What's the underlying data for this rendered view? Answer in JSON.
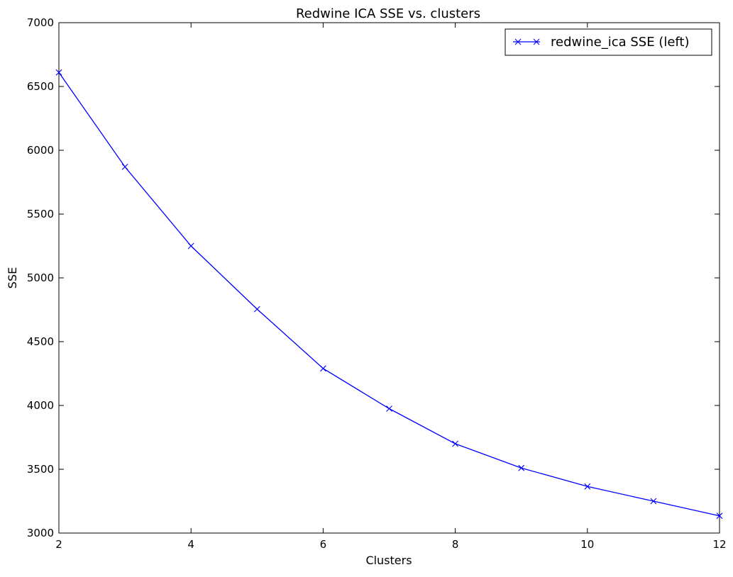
{
  "chart_data": {
    "type": "line",
    "title": "Redwine ICA SSE vs. clusters",
    "xlabel": "Clusters",
    "ylabel": "SSE",
    "xlim": [
      2,
      12
    ],
    "ylim": [
      3000,
      7000
    ],
    "xticks": [
      "2",
      "4",
      "6",
      "8",
      "10",
      "12"
    ],
    "yticks": [
      "3000",
      "3500",
      "4000",
      "4500",
      "5000",
      "5500",
      "6000",
      "6500",
      "7000"
    ],
    "grid": false,
    "legend_position": "top-right",
    "series": [
      {
        "name": "redwine_ica SSE (left)",
        "color": "#0000ff",
        "marker": "x",
        "x": [
          2,
          3,
          4,
          5,
          6,
          7,
          8,
          9,
          10,
          11,
          12
        ],
        "values": [
          6610,
          5870,
          5250,
          4755,
          4290,
          3975,
          3700,
          3510,
          3365,
          3250,
          3135
        ]
      }
    ]
  }
}
